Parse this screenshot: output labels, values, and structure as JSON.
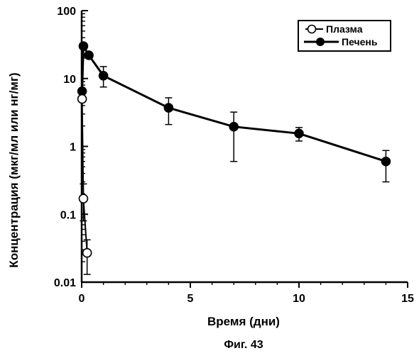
{
  "caption": "Фиг. 43",
  "chart_data": {
    "type": "line",
    "title": "",
    "xlabel": "Время (дни)",
    "ylabel": "Концентрация (мкг/мл или нг/мг)",
    "xlim": [
      0,
      15
    ],
    "ylim": [
      0.01,
      100
    ],
    "yscale": "log",
    "xticks": [
      0,
      5,
      10,
      15
    ],
    "xtick_labels": [
      "0",
      "5",
      "10",
      "15"
    ],
    "yticks": [
      0.01,
      0.1,
      1,
      10,
      100
    ],
    "ytick_labels": [
      "0.01",
      "0.1",
      "1",
      "10",
      "100"
    ],
    "grid": false,
    "legend_position": "top-right",
    "series": [
      {
        "name": "Плазма",
        "marker": "open-circle",
        "color": "#000000",
        "x": [
          0.02,
          0.08,
          0.25
        ],
        "y": [
          5.0,
          0.17,
          0.027
        ],
        "y_err_low": [
          null,
          0.08,
          0.013
        ],
        "y_err_high": [
          null,
          0.28,
          0.042
        ]
      },
      {
        "name": "Печень",
        "marker": "filled-circle",
        "color": "#000000",
        "x": [
          0.02,
          0.08,
          0.33,
          1.0,
          4.0,
          7.0,
          10.0,
          14.0
        ],
        "y": [
          6.5,
          30.0,
          22.0,
          11.0,
          3.7,
          1.95,
          1.55,
          0.6
        ],
        "y_err_low": [
          null,
          null,
          null,
          7.5,
          2.1,
          0.6,
          1.2,
          0.3
        ],
        "y_err_high": [
          null,
          null,
          null,
          15.0,
          5.2,
          3.2,
          1.9,
          0.87
        ]
      }
    ]
  }
}
